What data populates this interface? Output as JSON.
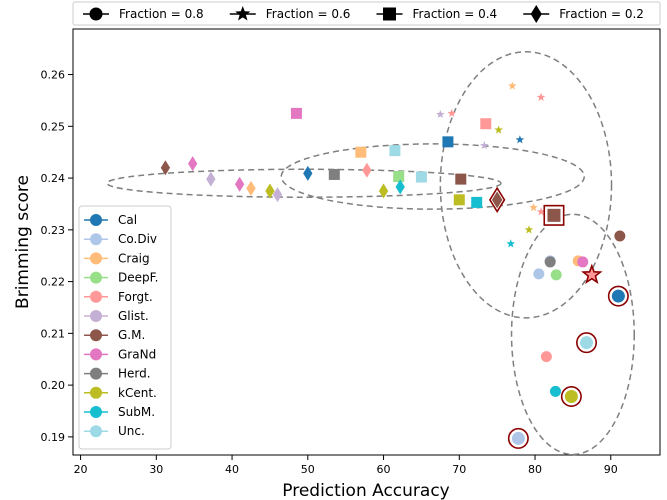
{
  "chart_data": {
    "type": "scatter",
    "xlabel": "Prediction Accuracy",
    "ylabel": "Brimming score",
    "xlim": [
      19,
      96.5
    ],
    "ylim": [
      0.1865,
      0.2688
    ],
    "xticks": [
      20,
      30,
      40,
      50,
      60,
      70,
      80,
      90
    ],
    "yticks": [
      0.19,
      0.2,
      0.21,
      0.22,
      0.23,
      0.24,
      0.25,
      0.26
    ],
    "ytick_labels": [
      "0.19",
      "0.20",
      "0.21",
      "0.22",
      "0.23",
      "0.24",
      "0.25",
      "0.26"
    ],
    "grid": false,
    "top_legend": {
      "placement": "top",
      "entries": [
        {
          "label": "Fraction = 0.8",
          "marker": "circle"
        },
        {
          "label": "Fraction = 0.6",
          "marker": "star"
        },
        {
          "label": "Fraction = 0.4",
          "marker": "square"
        },
        {
          "label": "Fraction = 0.2",
          "marker": "diamond"
        }
      ]
    },
    "method_legend": {
      "placement": "lower-left",
      "entries": [
        {
          "label": "Cal",
          "color": "#1f77b4"
        },
        {
          "label": "Co.Div",
          "color": "#aec7e8"
        },
        {
          "label": "Craig",
          "color": "#ffbb78"
        },
        {
          "label": "DeepF.",
          "color": "#98df8a"
        },
        {
          "label": "Forgt.",
          "color": "#ff9896"
        },
        {
          "label": "Glist.",
          "color": "#c5b0d5"
        },
        {
          "label": "G.M.",
          "color": "#8c564b"
        },
        {
          "label": "GraNd",
          "color": "#e377c2"
        },
        {
          "label": "Herd.",
          "color": "#7f7f7f"
        },
        {
          "label": "kCent.",
          "color": "#bcbd22"
        },
        {
          "label": "SubM.",
          "color": "#17becf"
        },
        {
          "label": "Unc.",
          "color": "#9edae5"
        }
      ]
    },
    "series": [
      {
        "name": "Fraction = 0.8",
        "marker": "circle",
        "points": [
          {
            "x": 91.0,
            "y": 0.2172,
            "method": "Cal",
            "highlight": true
          },
          {
            "x": 80.5,
            "y": 0.2215,
            "method": "Co.Div"
          },
          {
            "x": 82.0,
            "y": 0.224,
            "method": "Co.Div"
          },
          {
            "x": 86.8,
            "y": 0.2082,
            "method": "Unc.",
            "highlight": true
          },
          {
            "x": 77.8,
            "y": 0.1897,
            "method": "Co.Div",
            "highlight": true
          },
          {
            "x": 81.5,
            "y": 0.2055,
            "method": "Forgt."
          },
          {
            "x": 82.7,
            "y": 0.1988,
            "method": "SubM."
          },
          {
            "x": 84.8,
            "y": 0.1978,
            "method": "kCent.",
            "highlight": true
          },
          {
            "x": 82.8,
            "y": 0.2213,
            "method": "DeepF."
          },
          {
            "x": 85.7,
            "y": 0.224,
            "method": "Craig"
          },
          {
            "x": 86.3,
            "y": 0.2238,
            "method": "GraNd"
          },
          {
            "x": 82.0,
            "y": 0.2238,
            "method": "Herd."
          },
          {
            "x": 91.2,
            "y": 0.2288,
            "method": "G.M."
          }
        ]
      },
      {
        "name": "Fraction = 0.6",
        "marker": "star",
        "points": [
          {
            "x": 87.5,
            "y": 0.2213,
            "method": "Forgt.",
            "highlight": true
          },
          {
            "x": 77.0,
            "y": 0.2578,
            "method": "Craig"
          },
          {
            "x": 80.8,
            "y": 0.2556,
            "method": "Forgt."
          },
          {
            "x": 67.5,
            "y": 0.2523,
            "method": "Glist."
          },
          {
            "x": 69.0,
            "y": 0.2525,
            "method": "Forgt."
          },
          {
            "x": 75.2,
            "y": 0.2493,
            "method": "kCent."
          },
          {
            "x": 73.3,
            "y": 0.2463,
            "method": "Glist."
          },
          {
            "x": 78.0,
            "y": 0.2474,
            "method": "Cal"
          },
          {
            "x": 79.2,
            "y": 0.23,
            "method": "kCent."
          },
          {
            "x": 79.8,
            "y": 0.2343,
            "method": "Craig"
          },
          {
            "x": 80.8,
            "y": 0.2335,
            "method": "Forgt."
          },
          {
            "x": 76.8,
            "y": 0.2273,
            "method": "SubM."
          }
        ]
      },
      {
        "name": "Fraction = 0.4",
        "marker": "square",
        "points": [
          {
            "x": 48.5,
            "y": 0.2525,
            "method": "GraNd"
          },
          {
            "x": 53.5,
            "y": 0.2407,
            "method": "Herd."
          },
          {
            "x": 57.0,
            "y": 0.245,
            "method": "Craig"
          },
          {
            "x": 61.5,
            "y": 0.2453,
            "method": "Unc."
          },
          {
            "x": 62.0,
            "y": 0.2403,
            "method": "DeepF."
          },
          {
            "x": 65.0,
            "y": 0.2402,
            "method": "Unc."
          },
          {
            "x": 68.5,
            "y": 0.247,
            "method": "Cal"
          },
          {
            "x": 73.5,
            "y": 0.2505,
            "method": "Forgt."
          },
          {
            "x": 70.2,
            "y": 0.2398,
            "method": "G.M."
          },
          {
            "x": 70.0,
            "y": 0.2358,
            "method": "kCent."
          },
          {
            "x": 72.3,
            "y": 0.2353,
            "method": "SubM."
          },
          {
            "x": 82.5,
            "y": 0.2328,
            "method": "G.M.",
            "highlight": true
          }
        ]
      },
      {
        "name": "Fraction = 0.2",
        "marker": "diamond",
        "points": [
          {
            "x": 31.2,
            "y": 0.242,
            "method": "G.M."
          },
          {
            "x": 34.8,
            "y": 0.2428,
            "method": "GraNd"
          },
          {
            "x": 37.2,
            "y": 0.2398,
            "method": "Glist."
          },
          {
            "x": 41.0,
            "y": 0.2388,
            "method": "GraNd"
          },
          {
            "x": 42.5,
            "y": 0.238,
            "method": "Craig"
          },
          {
            "x": 45.0,
            "y": 0.2375,
            "method": "kCent."
          },
          {
            "x": 46.0,
            "y": 0.2368,
            "method": "Glist."
          },
          {
            "x": 50.0,
            "y": 0.2409,
            "method": "Cal"
          },
          {
            "x": 57.8,
            "y": 0.2415,
            "method": "Forgt."
          },
          {
            "x": 60.0,
            "y": 0.2375,
            "method": "kCent."
          },
          {
            "x": 62.2,
            "y": 0.2383,
            "method": "SubM."
          },
          {
            "x": 75.0,
            "y": 0.2358,
            "method": "G.M.",
            "highlight": true
          }
        ]
      }
    ],
    "ellipses": [
      {
        "label": "Fraction = 0.2",
        "cx": 49.5,
        "cy": 0.239,
        "rx_data": 26.0,
        "ry_data": 0.0027
      },
      {
        "label": "Fraction = 0.4",
        "cx": 66.5,
        "cy": 0.2403,
        "rx_data": 20.0,
        "ry_data": 0.0063
      },
      {
        "label": "Fraction = 0.6",
        "cx": 78.8,
        "cy": 0.2387,
        "rx_data": 11.3,
        "ry_data": 0.0257
      },
      {
        "label": "Fraction = 0.8",
        "cx": 85.0,
        "cy": 0.2098,
        "rx_data": 8.1,
        "ry_data": 0.0232
      }
    ]
  }
}
